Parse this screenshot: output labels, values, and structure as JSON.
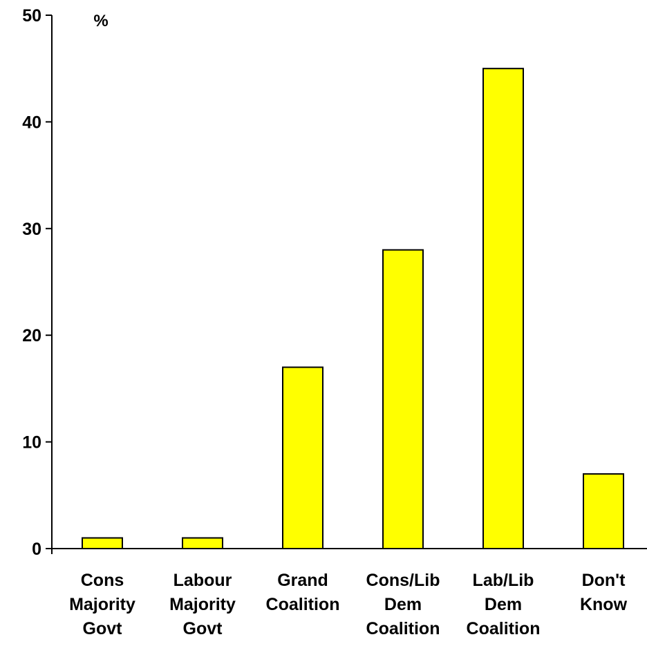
{
  "chart_data": {
    "type": "bar",
    "y_unit_label": "%",
    "categories": [
      [
        "Cons",
        "Majority",
        "Govt"
      ],
      [
        "Labour",
        "Majority",
        "Govt"
      ],
      [
        "Grand",
        "Coalition"
      ],
      [
        "Cons/Lib",
        "Dem",
        "Coalition"
      ],
      [
        "Lab/Lib",
        "Dem",
        "Coalition"
      ],
      [
        "Don't",
        "Know"
      ]
    ],
    "values": [
      1,
      1,
      17,
      28,
      45,
      7
    ],
    "ylim": [
      0,
      50
    ],
    "yticks": [
      "0",
      "10",
      "20",
      "30",
      "40",
      "50"
    ],
    "grid": false,
    "legend": "none",
    "colors": {
      "bar_fill": "#FFFF00",
      "bar_stroke": "#000000",
      "axis": "#000000"
    }
  }
}
